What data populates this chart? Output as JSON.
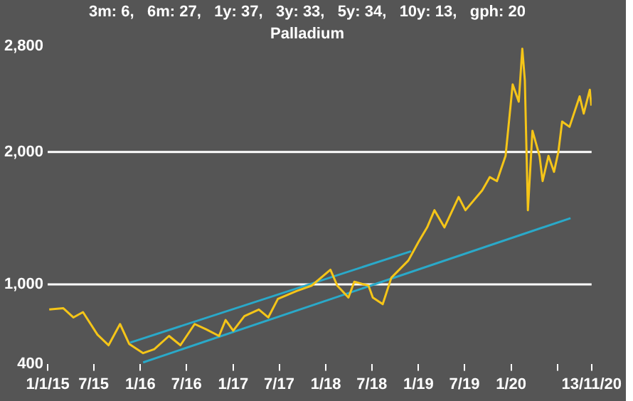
{
  "chart_data": {
    "type": "line",
    "title": "3m: 6,   6m: 27,   1y: 37,   3y: 33,   5y: 34,   10y: 13,   gph: 20",
    "subtitle": "Palladium",
    "xlim": [
      "2015-01-01",
      "2020-11-13"
    ],
    "xticks": [
      {
        "value": "2015-01-01",
        "label": "1/1/15"
      },
      {
        "value": "2015-07-01",
        "label": "7/15"
      },
      {
        "value": "2016-01-01",
        "label": "1/16"
      },
      {
        "value": "2016-07-01",
        "label": "7/16"
      },
      {
        "value": "2017-01-01",
        "label": "1/17"
      },
      {
        "value": "2017-07-01",
        "label": "7/17"
      },
      {
        "value": "2018-01-01",
        "label": "1/18"
      },
      {
        "value": "2018-07-01",
        "label": "7/18"
      },
      {
        "value": "2019-01-01",
        "label": "1/19"
      },
      {
        "value": "2019-07-01",
        "label": "7/19"
      },
      {
        "value": "2020-01-01",
        "label": "1/20"
      },
      {
        "value": "2020-07-01",
        "label": null
      },
      {
        "value": "2020-11-13",
        "label": "13/11/20"
      }
    ],
    "ylim": [
      400,
      2800
    ],
    "yticks": [
      {
        "value": 400,
        "label": "400"
      },
      {
        "value": 1000,
        "label": "1,000"
      },
      {
        "value": 2000,
        "label": "2,000"
      },
      {
        "value": 2800,
        "label": "2,800"
      }
    ],
    "grid": false,
    "legend": false,
    "marker": "none",
    "ref_lines": [
      {
        "axis": "y",
        "value": 1000,
        "color": "#ffffff"
      },
      {
        "axis": "y",
        "value": 2000,
        "color": "#ffffff"
      }
    ],
    "series": [
      {
        "color": "#f5c518",
        "x": [
          "2015-01-07",
          "2015-03-03",
          "2015-04-12",
          "2015-05-20",
          "2015-07-16",
          "2015-08-29",
          "2015-10-13",
          "2015-11-18",
          "2016-01-12",
          "2016-02-25",
          "2016-04-23",
          "2016-06-07",
          "2016-08-02",
          "2016-09-16",
          "2016-11-06",
          "2016-12-02",
          "2017-01-01",
          "2017-02-14",
          "2017-04-12",
          "2017-05-19",
          "2017-06-26",
          "2017-09-09",
          "2017-11-06",
          "2018-01-19",
          "2018-02-15",
          "2018-03-31",
          "2018-04-23",
          "2018-06-18",
          "2018-07-05",
          "2018-08-13",
          "2018-09-16",
          "2018-11-22",
          "2019-01-01",
          "2019-02-04",
          "2019-03-05",
          "2019-04-13",
          "2019-06-08",
          "2019-07-05",
          "2019-09-09",
          "2019-10-09",
          "2019-11-06",
          "2019-12-10",
          "2020-01-07",
          "2020-01-31",
          "2020-02-14",
          "2020-02-24",
          "2020-03-07",
          "2020-03-25",
          "2020-04-22",
          "2020-05-04",
          "2020-05-27",
          "2020-06-18",
          "2020-07-05",
          "2020-07-20",
          "2020-08-18",
          "2020-09-27",
          "2020-10-13",
          "2020-11-06",
          "2020-11-12"
        ],
        "values": [
          810,
          820,
          750,
          790,
          620,
          540,
          700,
          550,
          480,
          510,
          610,
          540,
          700,
          660,
          610,
          730,
          650,
          760,
          810,
          750,
          890,
          950,
          990,
          1110,
          990,
          900,
          1020,
          990,
          900,
          850,
          1050,
          1180,
          1320,
          1430,
          1560,
          1430,
          1660,
          1560,
          1710,
          1810,
          1780,
          1970,
          2510,
          2380,
          2780,
          2540,
          1560,
          2160,
          1970,
          1780,
          1970,
          1850,
          2000,
          2230,
          2190,
          2420,
          2290,
          2470,
          2350
        ]
      },
      {
        "color": "#2aa9c9",
        "x": [
          "2015-11-22",
          "2018-12-03"
        ],
        "values": [
          560,
          1250
        ]
      },
      {
        "color": "#2aa9c9",
        "x": [
          "2016-01-12",
          "2020-08-22"
        ],
        "values": [
          410,
          1500
        ]
      }
    ]
  }
}
